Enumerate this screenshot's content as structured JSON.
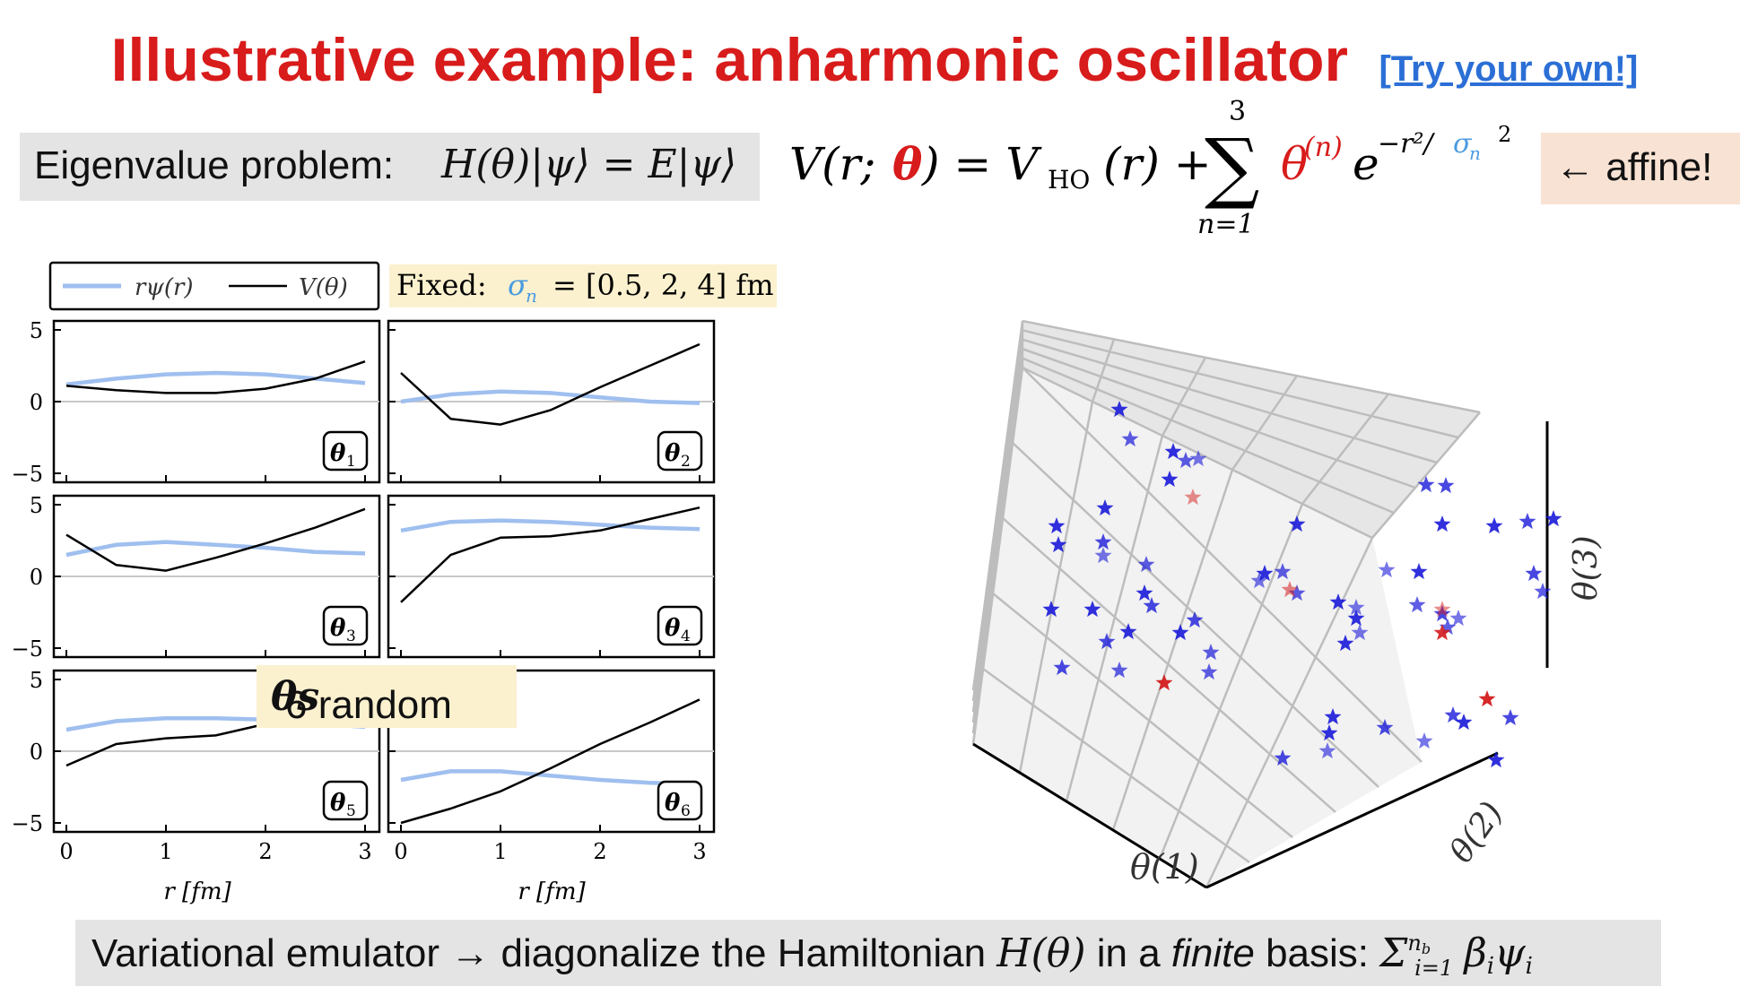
{
  "title": {
    "main": "Illustrative example: anharmonic oscillator",
    "link": "[Try your own!]"
  },
  "eigen": {
    "label": "Eigenvalue problem:",
    "equation": "H(θ)|ψ⟩ = E|ψ⟩"
  },
  "potential": {
    "lhs": "V(r; ",
    "theta": "θ",
    "rhs1": ") = V",
    "sub": "HO",
    "rhs2": "(r) + ",
    "sum_top": "3",
    "sum_bottom": "n=1",
    "coef": "θ",
    "coef_sup": "(n)",
    "exp_base": "e",
    "exp": "−r²/",
    "sigma": "σ",
    "sigma_sub": "n",
    "sq": "2"
  },
  "affine": "← affine!",
  "legend": {
    "psi": "rψ(r)",
    "V": "V(θ)"
  },
  "fixed": {
    "label": "Fixed:",
    "sigma": "σ",
    "sigma_sub": "n",
    "values": "= [0.5, 2, 4] fm"
  },
  "callout": {
    "text": "6 random ",
    "theta": "θs"
  },
  "panels": [
    {
      "label": "θ",
      "sub": "1"
    },
    {
      "label": "θ",
      "sub": "2"
    },
    {
      "label": "θ",
      "sub": "3"
    },
    {
      "label": "θ",
      "sub": "4"
    },
    {
      "label": "θ",
      "sub": "5"
    },
    {
      "label": "θ",
      "sub": "6"
    }
  ],
  "axes3d": {
    "x": "θ(1)",
    "y": "θ(2)",
    "z": "θ(3)"
  },
  "bottom": {
    "pre": "Variational emulator → diagonalize the Hamiltonian ",
    "H": "H(θ)",
    "mid": " in a ",
    "finite": "finite",
    "post": " basis: ",
    "sum": "Σ",
    "sum_top": "n",
    "sum_top_sub": "b",
    "sum_bottom": "i=1",
    "term": "β",
    "term_sub": "i",
    "psi": "ψ",
    "psi_sub": "i"
  },
  "chart_data": {
    "type": "line",
    "subplots": [
      {
        "panel": 1,
        "x": [
          0,
          0.5,
          1,
          1.5,
          2,
          2.5,
          3
        ],
        "psi": [
          1.2,
          1.6,
          1.9,
          2.0,
          1.9,
          1.6,
          1.3
        ],
        "V": [
          1.1,
          0.8,
          0.6,
          0.6,
          0.9,
          1.6,
          2.8
        ]
      },
      {
        "panel": 2,
        "x": [
          0,
          0.5,
          1,
          1.5,
          2,
          2.5,
          3
        ],
        "psi": [
          0,
          0.5,
          0.7,
          0.6,
          0.3,
          0.0,
          -0.1
        ],
        "V": [
          2.0,
          -1.2,
          -1.6,
          -0.6,
          1.0,
          2.5,
          4.0
        ]
      },
      {
        "panel": 3,
        "x": [
          0,
          0.5,
          1,
          1.5,
          2,
          2.5,
          3
        ],
        "psi": [
          1.5,
          2.2,
          2.4,
          2.2,
          2.0,
          1.7,
          1.6
        ],
        "V": [
          2.9,
          0.8,
          0.4,
          1.3,
          2.3,
          3.4,
          4.7
        ]
      },
      {
        "panel": 4,
        "x": [
          0,
          0.5,
          1,
          1.5,
          2,
          2.5,
          3
        ],
        "psi": [
          3.2,
          3.8,
          3.9,
          3.8,
          3.6,
          3.4,
          3.3
        ],
        "V": [
          -1.8,
          1.5,
          2.7,
          2.8,
          3.2,
          4.0,
          4.8
        ]
      },
      {
        "panel": 5,
        "x": [
          0,
          0.5,
          1,
          1.5,
          2,
          2.5,
          3
        ],
        "psi": [
          1.5,
          2.1,
          2.3,
          2.3,
          2.2,
          1.9,
          1.7
        ],
        "V": [
          -1.0,
          0.5,
          0.9,
          1.1,
          1.9,
          2.8,
          3.5
        ]
      },
      {
        "panel": 6,
        "x": [
          0,
          0.5,
          1,
          1.5,
          2,
          2.5,
          3
        ],
        "psi": [
          -2.0,
          -1.4,
          -1.4,
          -1.7,
          -2.0,
          -2.2,
          -2.3
        ],
        "V": [
          -5.0,
          -4.0,
          -2.8,
          -1.2,
          0.5,
          2.0,
          3.6
        ]
      }
    ],
    "xlabel": "r [fm]",
    "xlim": [
      0,
      3
    ],
    "ylim": [
      -5,
      5
    ],
    "xticks": [
      0,
      1,
      2,
      3
    ],
    "yticks": [
      -5,
      0,
      5
    ],
    "legend": [
      "rψ(r)",
      "V(θ)"
    ],
    "scatter3d": {
      "type": "scatter",
      "axis_labels": [
        "θ(1)",
        "θ(2)",
        "θ(3)"
      ],
      "n_blue": 58,
      "n_red": 5
    }
  }
}
